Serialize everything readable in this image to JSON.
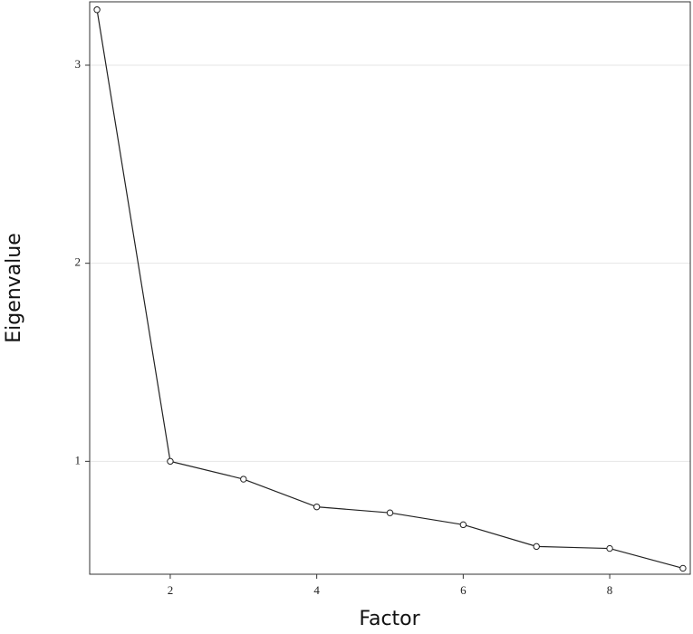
{
  "chart_data": {
    "type": "line",
    "x_label": "Factor",
    "y_label": "Eigenvalue",
    "x": [
      1,
      2,
      3,
      4,
      5,
      6,
      7,
      8,
      9
    ],
    "series": [
      {
        "color": "#222222",
        "values": [
          3.28,
          1.0,
          0.91,
          0.77,
          0.74,
          0.68,
          0.57,
          0.56,
          0.46
        ]
      }
    ],
    "xlim": [
      0.9,
      9.1
    ],
    "xticks": [
      2,
      4,
      6,
      8
    ],
    "ylim": [
      0.43,
      3.32
    ],
    "yticks": [
      1,
      2,
      3
    ],
    "grid": true
  }
}
